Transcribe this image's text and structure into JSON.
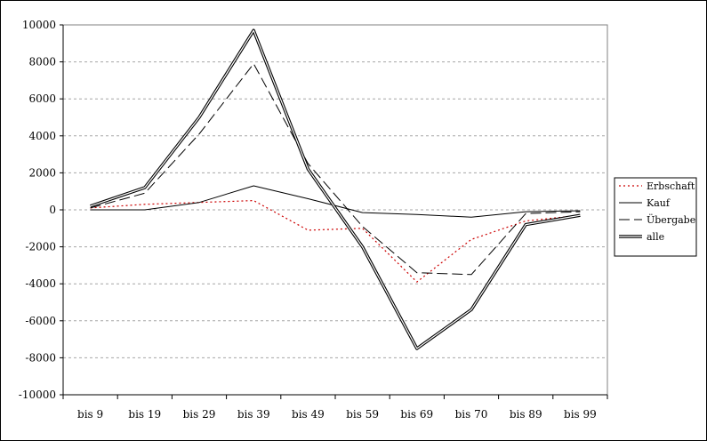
{
  "chart_data": {
    "type": "line",
    "categories": [
      "bis 9",
      "bis 19",
      "bis 29",
      "bis 39",
      "bis 49",
      "bis 59",
      "bis 69",
      "bis 70",
      "bis 89",
      "bis 99"
    ],
    "ylim": [
      -10000,
      10000
    ],
    "yticks": [
      10000,
      8000,
      6000,
      4000,
      2000,
      0,
      -2000,
      -4000,
      -6000,
      -8000,
      -10000
    ],
    "grid": true,
    "legend": "right",
    "series": [
      {
        "name": "Erbschaft",
        "style": "dotted",
        "color": "#cc0000",
        "values": [
          100,
          300,
          400,
          500,
          -1100,
          -1000,
          -3900,
          -1600,
          -600,
          -300
        ]
      },
      {
        "name": "Kauf",
        "style": "solid",
        "color": "#000000",
        "values": [
          0,
          0,
          400,
          1300,
          600,
          -150,
          -250,
          -400,
          -100,
          -50
        ]
      },
      {
        "name": "Übergabe",
        "style": "dashed",
        "color": "#000000",
        "values": [
          100,
          900,
          4100,
          7900,
          2500,
          -900,
          -3400,
          -3500,
          -200,
          -100
        ]
      },
      {
        "name": "alle",
        "style": "double",
        "color": "#000000",
        "values": [
          200,
          1200,
          5000,
          9700,
          2200,
          -2000,
          -7500,
          -5400,
          -800,
          -300
        ]
      }
    ]
  }
}
